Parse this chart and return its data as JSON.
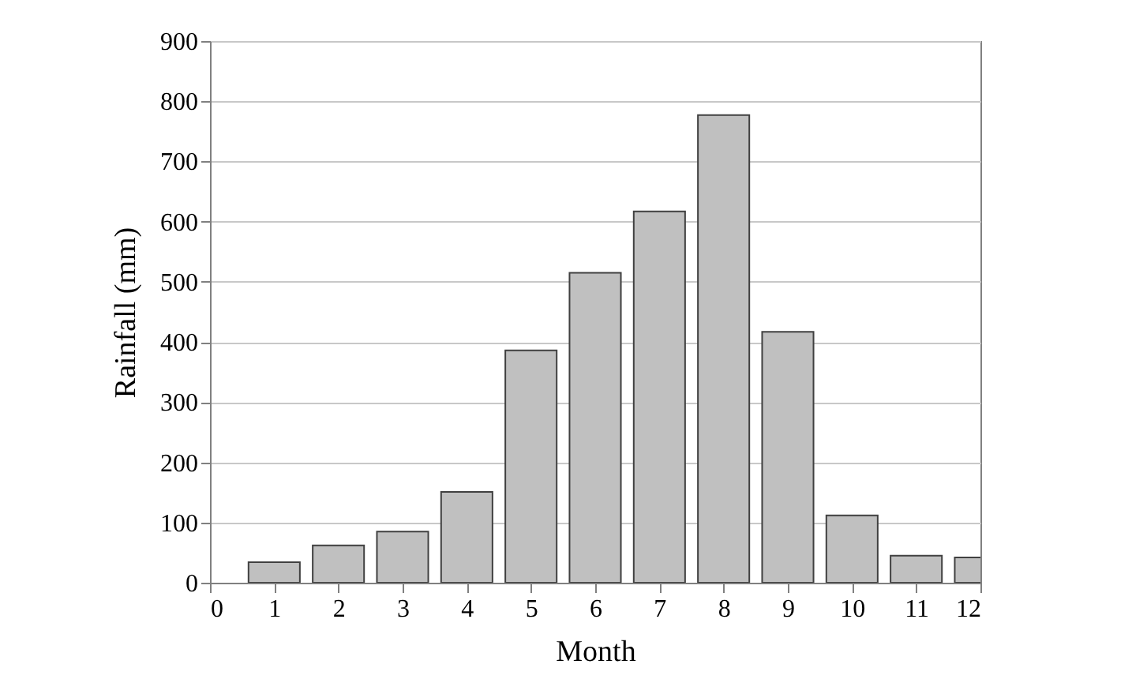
{
  "chart_data": {
    "type": "bar",
    "xlabel": "Month",
    "ylabel": "Rainfall (mm)",
    "x": [
      1,
      2,
      3,
      4,
      5,
      6,
      7,
      8,
      9,
      10,
      11,
      12
    ],
    "values": [
      34,
      62,
      85,
      151,
      386,
      515,
      617,
      777,
      417,
      112,
      45,
      42
    ],
    "color": "#c0c0c0",
    "xlim": [
      0,
      12
    ],
    "xticks": [
      0,
      1,
      2,
      3,
      4,
      5,
      6,
      7,
      8,
      9,
      10,
      11,
      12
    ],
    "ylim": [
      0,
      900
    ],
    "yticks": [
      0,
      100,
      200,
      300,
      400,
      500,
      600,
      700,
      800,
      900
    ],
    "grid": "y"
  }
}
